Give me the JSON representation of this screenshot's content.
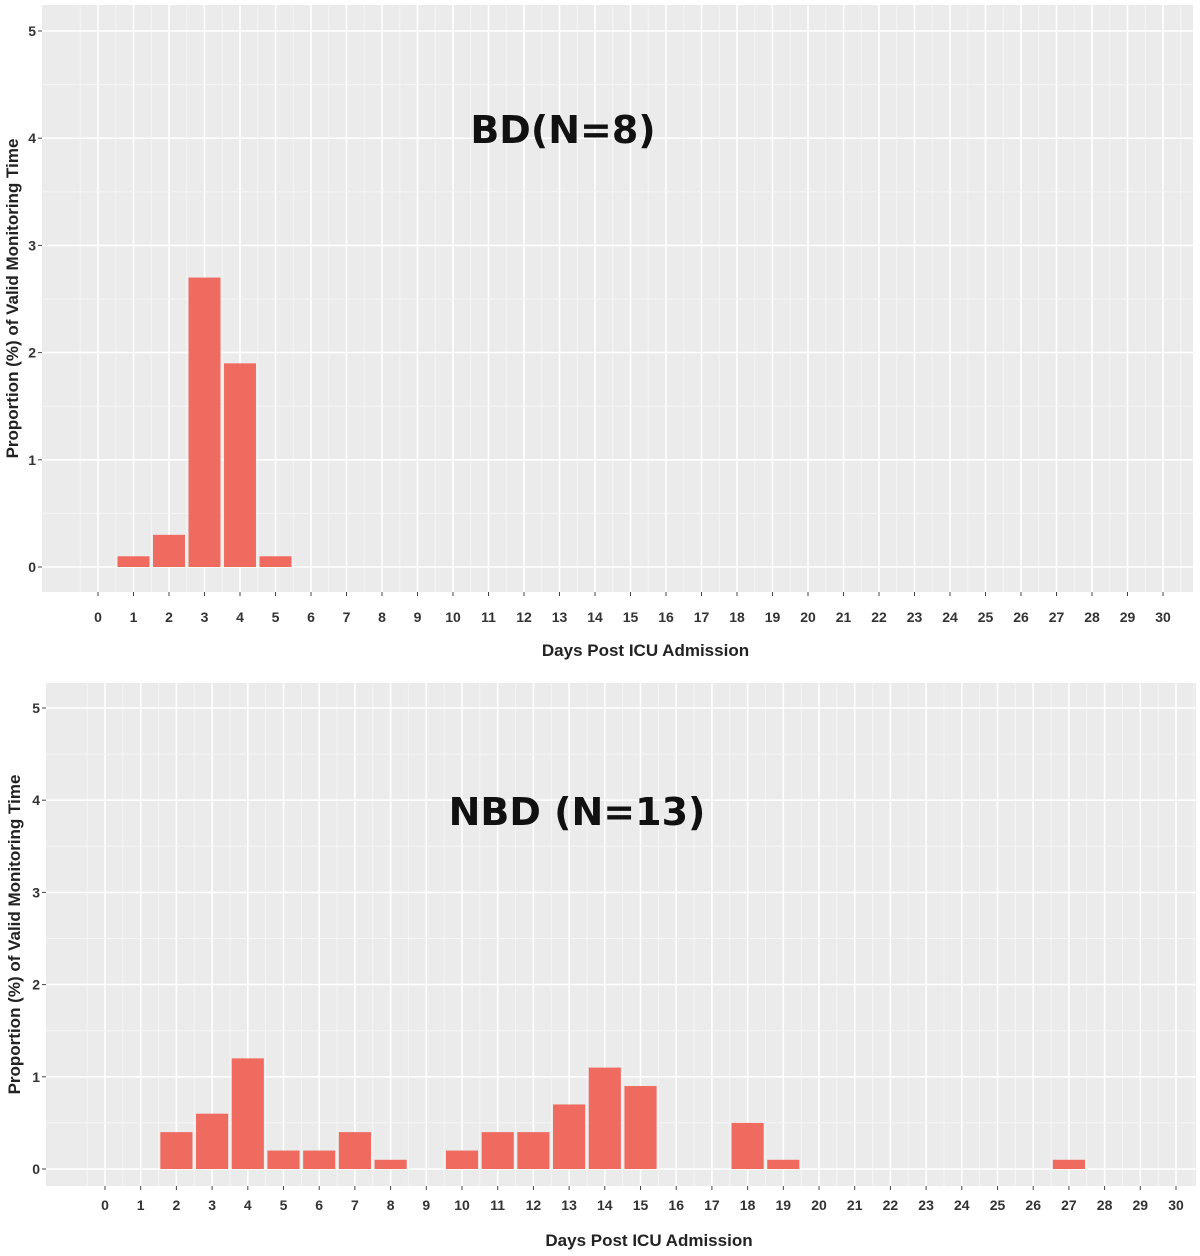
{
  "colors": {
    "bar": "#ef6b5f",
    "panel_bg": "#ebebeb",
    "grid_major": "#ffffff",
    "grid_minor": "#f5f5f5"
  },
  "chart_data": [
    {
      "type": "bar",
      "title": "BD(N=8)",
      "xlabel": "Days Post ICU Admission",
      "ylabel": "Proportion (%) of Valid Monitoring Time",
      "xlim": [
        0,
        30
      ],
      "ylim": [
        0,
        5
      ],
      "x_ticks": [
        "0",
        "1",
        "2",
        "3",
        "4",
        "5",
        "6",
        "7",
        "8",
        "9",
        "10",
        "11",
        "12",
        "13",
        "14",
        "15",
        "16",
        "17",
        "18",
        "19",
        "20",
        "21",
        "22",
        "23",
        "24",
        "25",
        "26",
        "27",
        "28",
        "29",
        "30"
      ],
      "y_ticks": [
        "0",
        "1",
        "2",
        "3",
        "4",
        "5"
      ],
      "grid": true,
      "x": [
        1,
        2,
        3,
        4,
        5
      ],
      "values": [
        0.1,
        0.3,
        2.7,
        1.9,
        0.1
      ]
    },
    {
      "type": "bar",
      "title": "NBD (N=13)",
      "xlabel": "Days Post ICU Admission",
      "ylabel": "Proportion (%) of Valid Monitoring Time",
      "xlim": [
        0,
        30
      ],
      "ylim": [
        0,
        5
      ],
      "x_ticks": [
        "0",
        "1",
        "2",
        "3",
        "4",
        "5",
        "6",
        "7",
        "8",
        "9",
        "10",
        "11",
        "12",
        "13",
        "14",
        "15",
        "16",
        "17",
        "18",
        "19",
        "20",
        "21",
        "22",
        "23",
        "24",
        "25",
        "26",
        "27",
        "28",
        "29",
        "30"
      ],
      "y_ticks": [
        "0",
        "1",
        "2",
        "3",
        "4",
        "5"
      ],
      "grid": true,
      "x": [
        2,
        3,
        4,
        5,
        6,
        7,
        8,
        10,
        11,
        12,
        13,
        14,
        15,
        18,
        19,
        27
      ],
      "values": [
        0.4,
        0.6,
        1.2,
        0.2,
        0.2,
        0.4,
        0.1,
        0.2,
        0.4,
        0.4,
        0.7,
        1.1,
        0.9,
        0.5,
        0.1,
        0.1
      ]
    }
  ]
}
